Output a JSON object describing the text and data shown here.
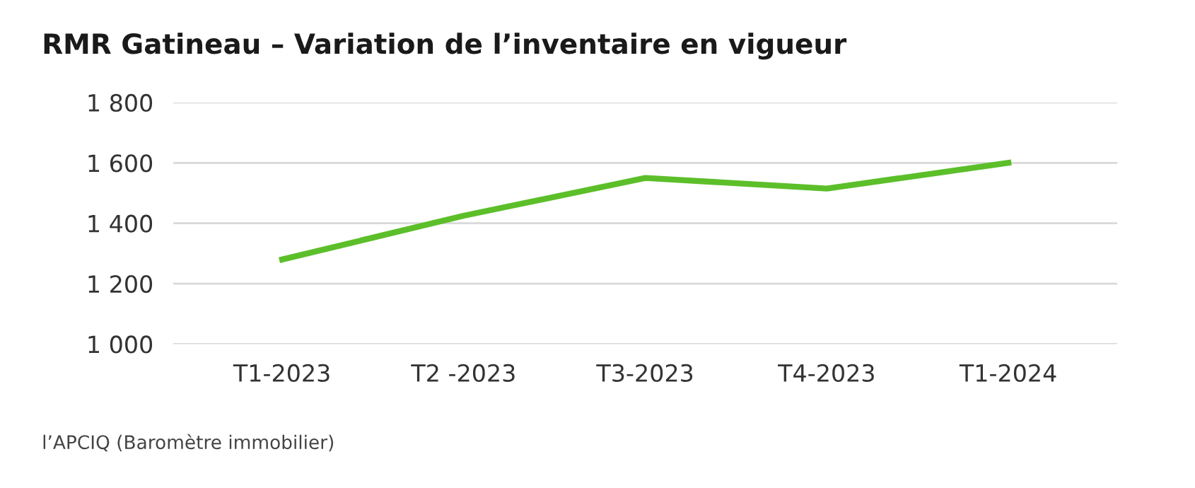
{
  "chart_data": {
    "type": "line",
    "title": "RMR Gatineau – Variation de l’inventaire en vigueur",
    "categories": [
      "T1-2023",
      "T2 -2023",
      "T3-2023",
      "T4-2023",
      "T1-2024"
    ],
    "series": [
      {
        "color": "#5cbf2a",
        "values": [
          1280,
          1425,
          1550,
          1515,
          1600
        ]
      }
    ],
    "ylim": [
      1000,
      1800
    ],
    "yticks": [
      {
        "value": 1000,
        "label": "1 000"
      },
      {
        "value": 1200,
        "label": "1 200"
      },
      {
        "value": 1400,
        "label": "1 400"
      },
      {
        "value": 1600,
        "label": "1 600"
      },
      {
        "value": 1800,
        "label": "1 800"
      }
    ],
    "grid": "y",
    "marker": "none",
    "line_style": "solid",
    "annotations": [
      "l’APCIQ (Baromètre immobilier)"
    ]
  }
}
